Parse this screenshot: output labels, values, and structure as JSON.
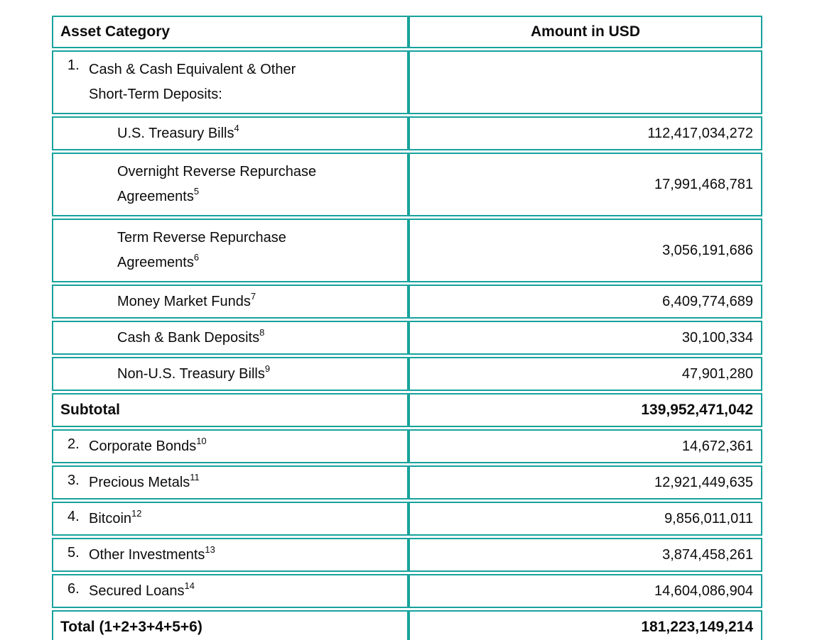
{
  "colors": {
    "border_teal": "#17A29D",
    "text": "#0c0c0c",
    "background": "#ffffff"
  },
  "table": {
    "columns": [
      {
        "label": "Asset Category"
      },
      {
        "label": "Amount in USD"
      }
    ],
    "rows": [
      {
        "kind": "group",
        "number": "1.",
        "lines": [
          "Cash & Cash Equivalent & Other",
          "Short-Term Deposits:"
        ],
        "sup": "",
        "amount": ""
      },
      {
        "kind": "sub",
        "number": "",
        "lines": [
          "U.S. Treasury Bills"
        ],
        "sup": "4",
        "amount": "112,417,034,272"
      },
      {
        "kind": "sub",
        "number": "",
        "lines": [
          "Overnight Reverse Repurchase",
          "Agreements"
        ],
        "sup": "5",
        "amount": "17,991,468,781"
      },
      {
        "kind": "sub",
        "number": "",
        "lines": [
          "Term Reverse Repurchase",
          "Agreements"
        ],
        "sup": "6",
        "amount": "3,056,191,686"
      },
      {
        "kind": "sub",
        "number": "",
        "lines": [
          "Money Market Funds"
        ],
        "sup": "7",
        "amount": "6,409,774,689"
      },
      {
        "kind": "sub",
        "number": "",
        "lines": [
          "Cash & Bank Deposits"
        ],
        "sup": "8",
        "amount": "30,100,334"
      },
      {
        "kind": "sub",
        "number": "",
        "lines": [
          "Non-U.S. Treasury Bills"
        ],
        "sup": "9",
        "amount": "47,901,280"
      },
      {
        "kind": "subtotal",
        "number": "",
        "lines": [
          "Subtotal"
        ],
        "sup": "",
        "amount": "139,952,471,042"
      },
      {
        "kind": "item",
        "number": "2.",
        "lines": [
          "Corporate Bonds"
        ],
        "sup": "10",
        "amount": "14,672,361"
      },
      {
        "kind": "item",
        "number": "3.",
        "lines": [
          "Precious Metals"
        ],
        "sup": "11",
        "amount": "12,921,449,635"
      },
      {
        "kind": "item",
        "number": "4.",
        "lines": [
          "Bitcoin"
        ],
        "sup": "12",
        "amount": "9,856,011,011"
      },
      {
        "kind": "item",
        "number": "5.",
        "lines": [
          "Other Investments"
        ],
        "sup": "13",
        "amount": "3,874,458,261"
      },
      {
        "kind": "item",
        "number": "6.",
        "lines": [
          "Secured Loans"
        ],
        "sup": "14",
        "amount": "14,604,086,904"
      },
      {
        "kind": "total",
        "number": "",
        "lines": [
          "Total (1+2+3+4+5+6)"
        ],
        "sup": "",
        "amount": "181,223,149,214"
      }
    ]
  }
}
